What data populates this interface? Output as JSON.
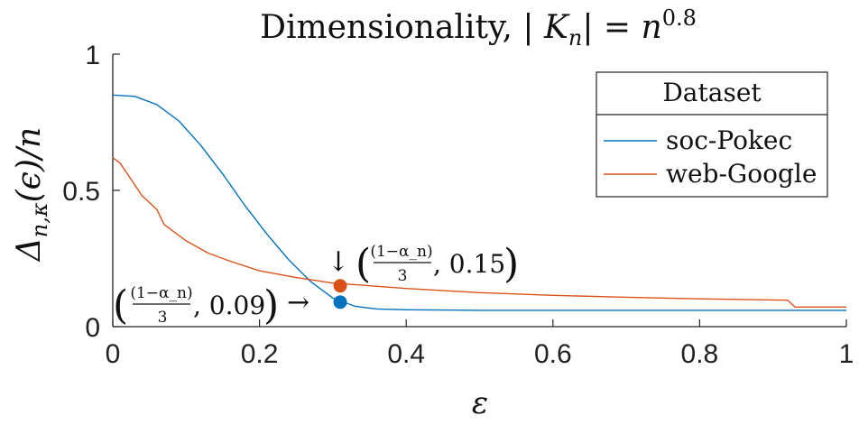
{
  "chart_data": {
    "type": "line",
    "title": "Dimensionality, |K_n| = n^{0.8}",
    "xlabel": "ε",
    "ylabel": "Δ_{n,κ}(ε)/n",
    "xlim": [
      0,
      1
    ],
    "ylim": [
      0,
      1
    ],
    "xticks": [
      0,
      0.2,
      0.4,
      0.6,
      0.8,
      1
    ],
    "xtick_labels": [
      "0",
      "0.2",
      "0.4",
      "0.6",
      "0.8",
      "1"
    ],
    "yticks": [
      0,
      0.5,
      1
    ],
    "ytick_labels": [
      "0",
      "0.5",
      "1"
    ],
    "grid": false,
    "legend": {
      "title": "Dataset",
      "position": "top-right"
    },
    "series": [
      {
        "name": "soc-Pokec",
        "color": "#0072BD",
        "x": [
          0,
          0.03,
          0.06,
          0.09,
          0.12,
          0.15,
          0.18,
          0.21,
          0.24,
          0.27,
          0.3,
          0.33,
          0.36,
          0.4,
          0.5,
          0.6,
          0.8,
          1.0
        ],
        "y": [
          0.85,
          0.845,
          0.815,
          0.755,
          0.665,
          0.56,
          0.445,
          0.34,
          0.245,
          0.165,
          0.105,
          0.075,
          0.065,
          0.062,
          0.06,
          0.06,
          0.06,
          0.06
        ]
      },
      {
        "name": "web-Google",
        "color": "#D95319",
        "x": [
          0,
          0.01,
          0.02,
          0.03,
          0.04,
          0.05,
          0.06,
          0.07,
          0.1,
          0.13,
          0.16,
          0.2,
          0.25,
          0.3,
          0.4,
          0.5,
          0.6,
          0.7,
          0.8,
          0.92,
          0.93,
          1.0
        ],
        "y": [
          0.62,
          0.6,
          0.56,
          0.52,
          0.48,
          0.455,
          0.43,
          0.375,
          0.315,
          0.27,
          0.24,
          0.205,
          0.18,
          0.16,
          0.14,
          0.125,
          0.115,
          0.108,
          0.102,
          0.097,
          0.072,
          0.072
        ]
      }
    ],
    "markers": [
      {
        "x": 0.31,
        "y": 0.15,
        "color": "#D95319",
        "label_fraction_num": "(1−α_n)",
        "label_fraction_den": "3",
        "label_value": ", 0.15",
        "arrow": "↓"
      },
      {
        "x": 0.31,
        "y": 0.09,
        "color": "#0072BD",
        "label_fraction_num": "(1−α_n)",
        "label_fraction_den": "3",
        "label_value": ", 0.09",
        "arrow": "→"
      }
    ]
  }
}
